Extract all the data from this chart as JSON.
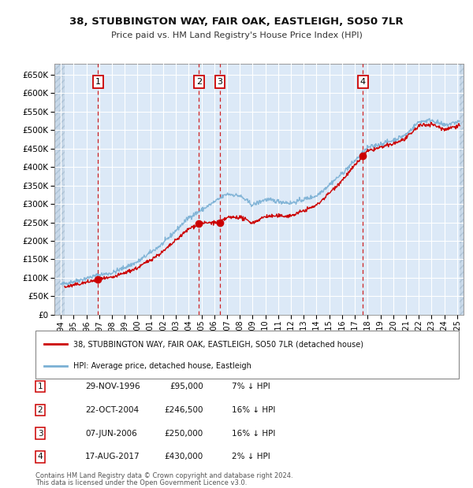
{
  "title1": "38, STUBBINGTON WAY, FAIR OAK, EASTLEIGH, SO50 7LR",
  "title2": "Price paid vs. HM Land Registry's House Price Index (HPI)",
  "background_color": "#dce9f7",
  "plot_bg_color": "#dce9f7",
  "grid_color": "#ffffff",
  "line_color_red": "#cc0000",
  "line_color_blue": "#7ab0d4",
  "sale_points": [
    {
      "date_num": 1996.91,
      "price": 95000,
      "label": "1"
    },
    {
      "date_num": 2004.81,
      "price": 246500,
      "label": "2"
    },
    {
      "date_num": 2006.44,
      "price": 250000,
      "label": "3"
    },
    {
      "date_num": 2017.63,
      "price": 430000,
      "label": "4"
    }
  ],
  "table_rows": [
    {
      "num": "1",
      "date": "29-NOV-1996",
      "price": "£95,000",
      "hpi": "7% ↓ HPI"
    },
    {
      "num": "2",
      "date": "22-OCT-2004",
      "price": "£246,500",
      "hpi": "16% ↓ HPI"
    },
    {
      "num": "3",
      "date": "07-JUN-2006",
      "price": "£250,000",
      "hpi": "16% ↓ HPI"
    },
    {
      "num": "4",
      "date": "17-AUG-2017",
      "price": "£430,000",
      "hpi": "2% ↓ HPI"
    }
  ],
  "legend_label_red": "38, STUBBINGTON WAY, FAIR OAK, EASTLEIGH, SO50 7LR (detached house)",
  "legend_label_blue": "HPI: Average price, detached house, Eastleigh",
  "footnote1": "Contains HM Land Registry data © Crown copyright and database right 2024.",
  "footnote2": "This data is licensed under the Open Government Licence v3.0.",
  "xmin": 1993.5,
  "xmax": 2025.5,
  "ymin": 0,
  "ymax": 680000,
  "yticks": [
    0,
    50000,
    100000,
    150000,
    200000,
    250000,
    300000,
    350000,
    400000,
    450000,
    500000,
    550000,
    600000,
    650000
  ],
  "xticks": [
    1994,
    1995,
    1996,
    1997,
    1998,
    1999,
    2000,
    2001,
    2002,
    2003,
    2004,
    2005,
    2006,
    2007,
    2008,
    2009,
    2010,
    2011,
    2012,
    2013,
    2014,
    2015,
    2016,
    2017,
    2018,
    2019,
    2020,
    2021,
    2022,
    2023,
    2024,
    2025
  ]
}
